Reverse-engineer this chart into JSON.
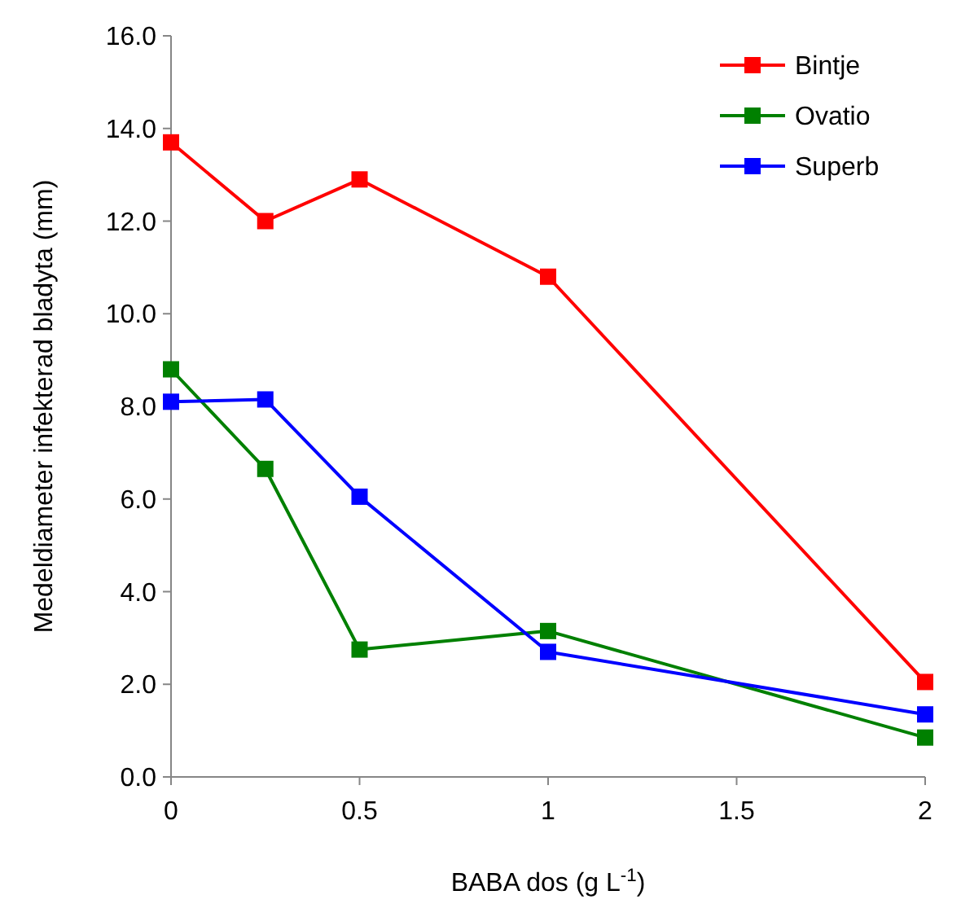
{
  "chart_data": {
    "type": "line",
    "xlabel": "BABA dos (g L$^{-1}$)",
    "ylabel": "Medeldiameter infekterad bladyta (mm)",
    "x": [
      0,
      0.25,
      0.5,
      1,
      2
    ],
    "series": [
      {
        "name": "Bintje",
        "color": "#ff0000",
        "values": [
          13.7,
          12.0,
          12.9,
          10.8,
          2.05
        ]
      },
      {
        "name": "Ovatio",
        "color": "#008000",
        "values": [
          8.8,
          6.65,
          2.75,
          3.15,
          0.85
        ]
      },
      {
        "name": "Superb",
        "color": "#0000ff",
        "values": [
          8.1,
          8.15,
          6.05,
          2.7,
          1.35
        ]
      }
    ],
    "xlim": [
      0,
      2
    ],
    "xticks": [
      0,
      0.5,
      1,
      1.5,
      2
    ],
    "ylim": [
      0,
      16
    ],
    "yticks": [
      {
        "value": 0,
        "label": "0.0"
      },
      {
        "value": 2,
        "label": "2.0"
      },
      {
        "value": 4,
        "label": "4.0"
      },
      {
        "value": 6,
        "label": "6.0"
      },
      {
        "value": 8,
        "label": "8.0"
      },
      {
        "value": 10,
        "label": "10.0"
      },
      {
        "value": 12,
        "label": "12.0"
      },
      {
        "value": 14,
        "label": "14.0"
      },
      {
        "value": 16,
        "label": "16.0"
      }
    ],
    "grid": false,
    "legend": "top right",
    "marker": "square",
    "line_style": "solid"
  }
}
